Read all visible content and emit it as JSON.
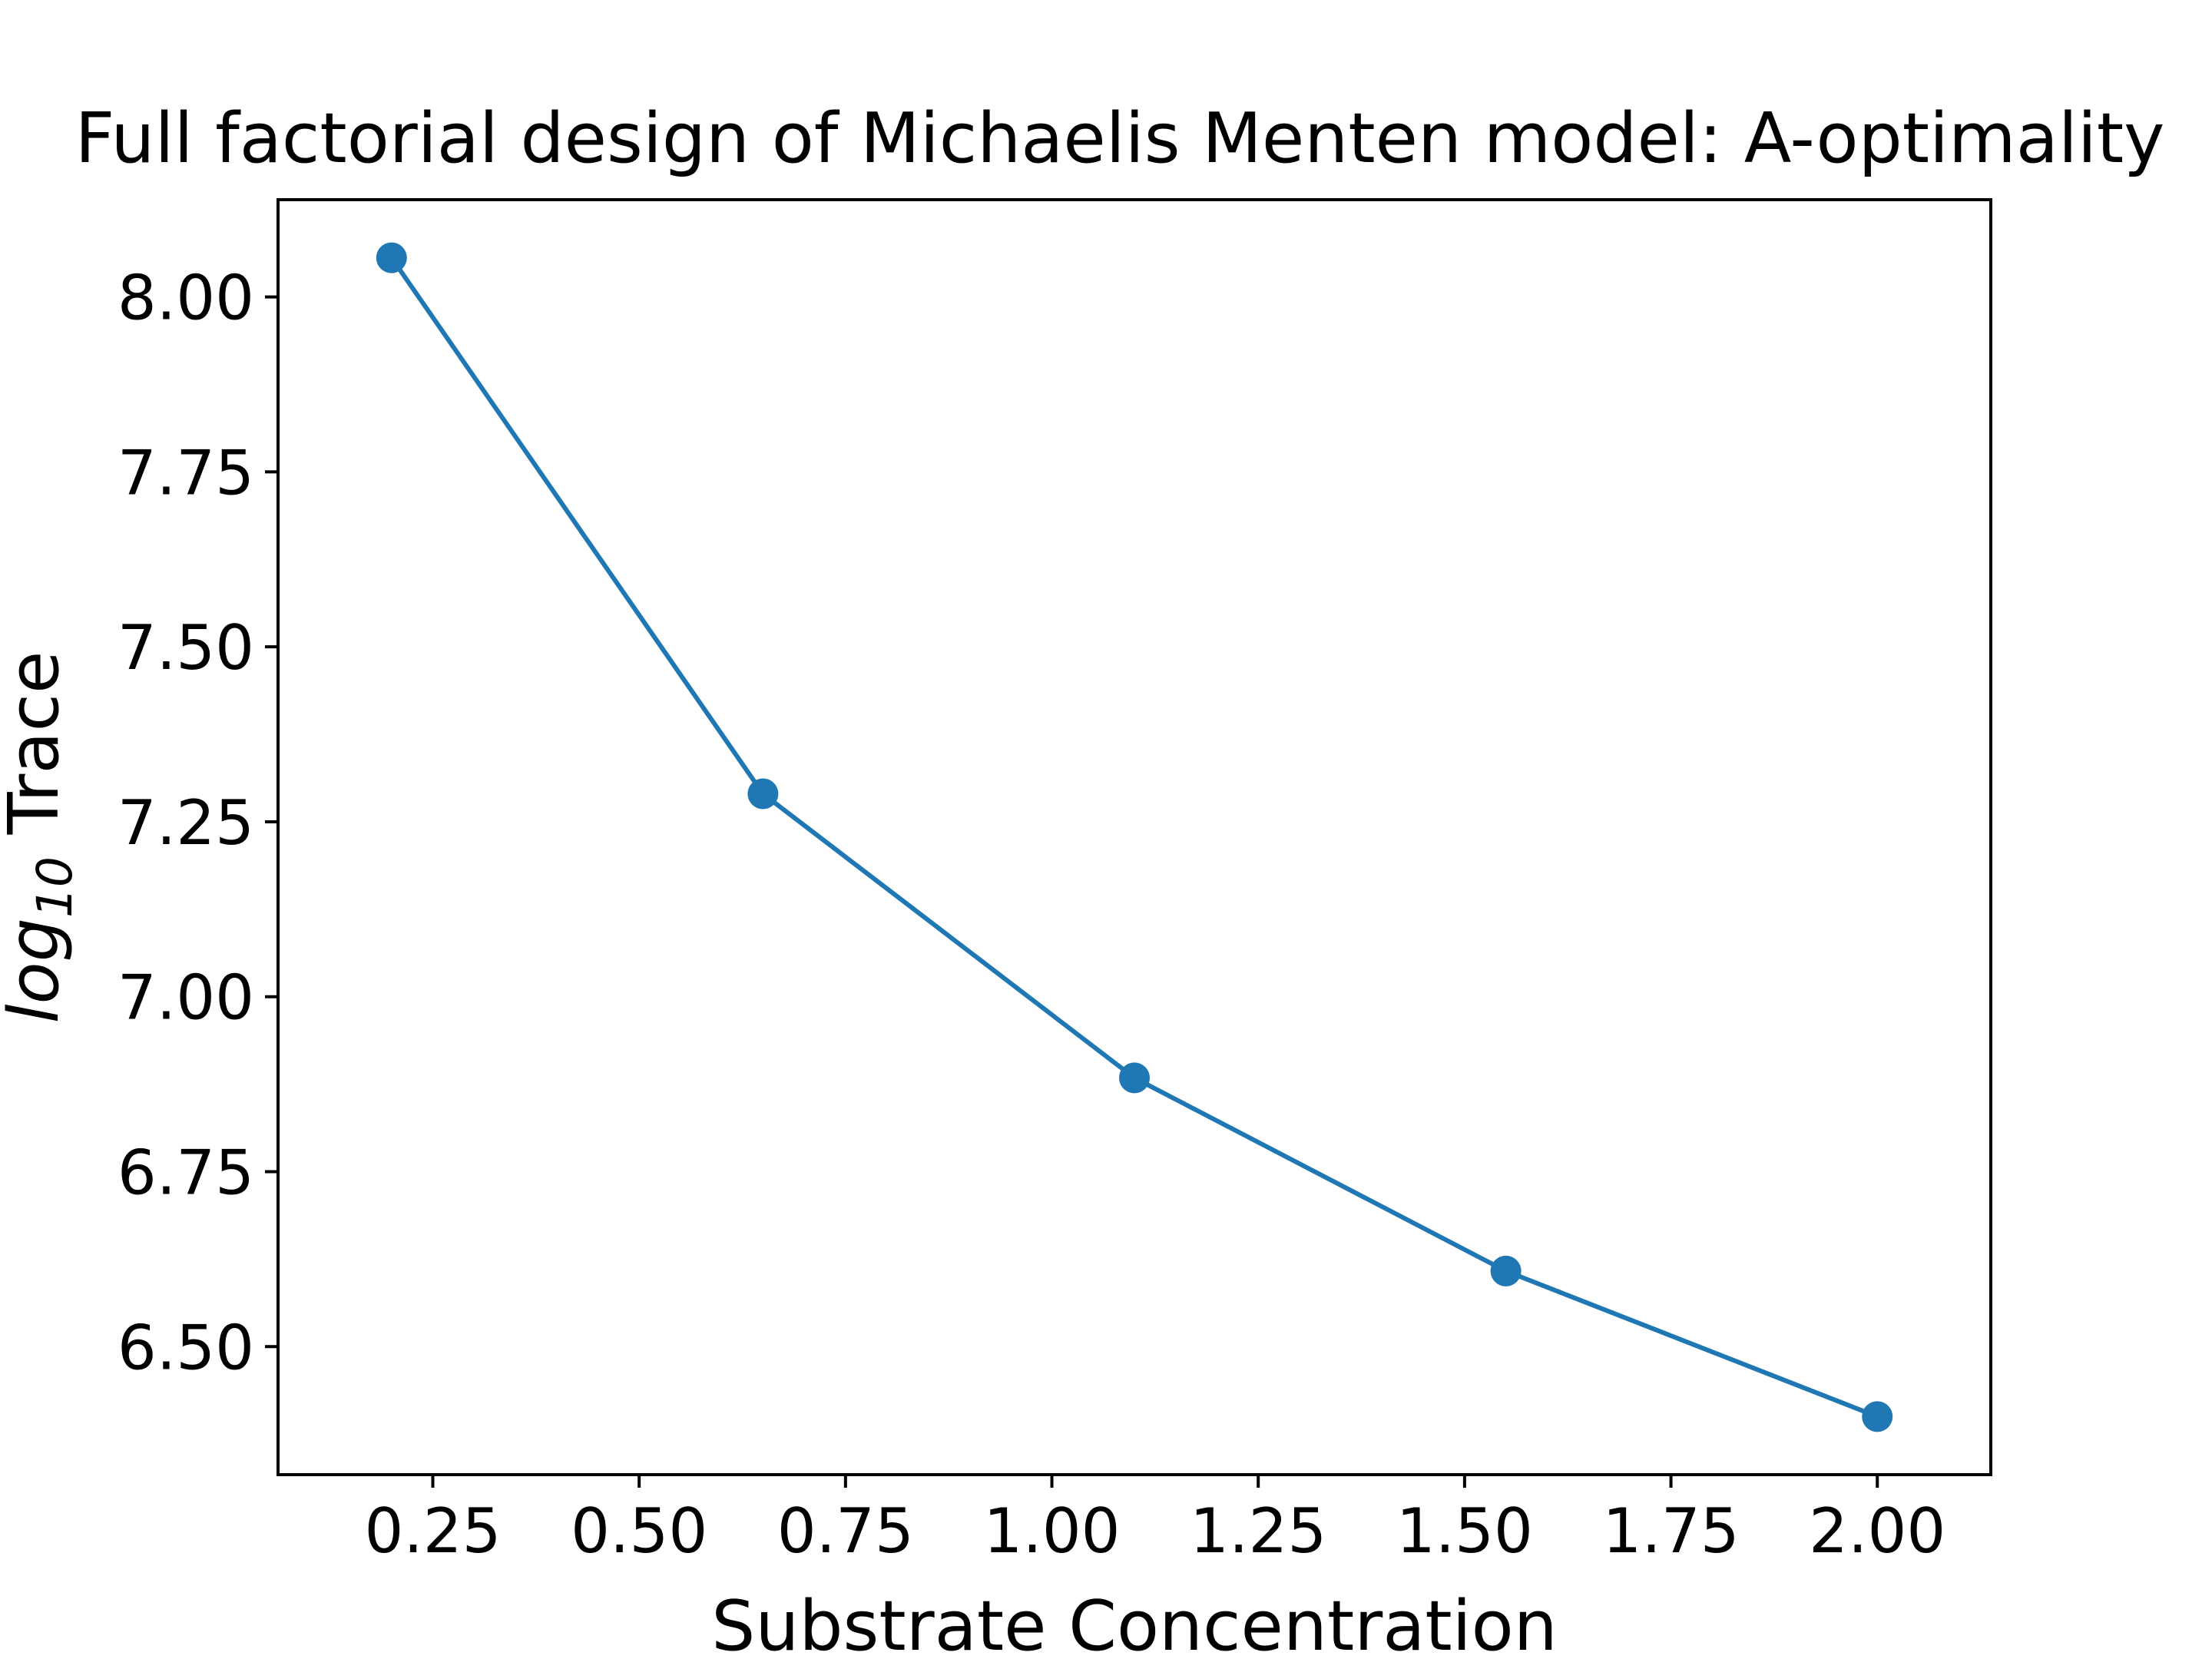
{
  "chart_data": {
    "type": "line",
    "title": "Full factorial design of Michaelis Menten model: A-optimality",
    "xlabel": "Substrate Concentration",
    "ylabel": {
      "base": "log",
      "subscript": "10",
      "suffix": " Trace"
    },
    "x": [
      0.2,
      0.65,
      1.1,
      1.55,
      2.0
    ],
    "series": [
      {
        "values": [
          8.056,
          7.29,
          6.884,
          6.608,
          6.4
        ]
      }
    ],
    "xlim": [
      0.0625,
      2.1375
    ],
    "ylim": [
      6.317,
      8.139
    ],
    "xticks": [
      0.25,
      0.5,
      0.75,
      1.0,
      1.25,
      1.5,
      1.75,
      2.0
    ],
    "xtick_labels": [
      "0.25",
      "0.50",
      "0.75",
      "1.00",
      "1.25",
      "1.50",
      "1.75",
      "2.00"
    ],
    "yticks": [
      6.5,
      6.75,
      7.0,
      7.25,
      7.5,
      7.75,
      8.0
    ],
    "ytick_labels": [
      "6.50",
      "6.75",
      "7.00",
      "7.25",
      "7.50",
      "7.75",
      "8.00"
    ],
    "grid": false,
    "legend": "none",
    "line_color": "#1f77b4",
    "marker": "circle"
  }
}
